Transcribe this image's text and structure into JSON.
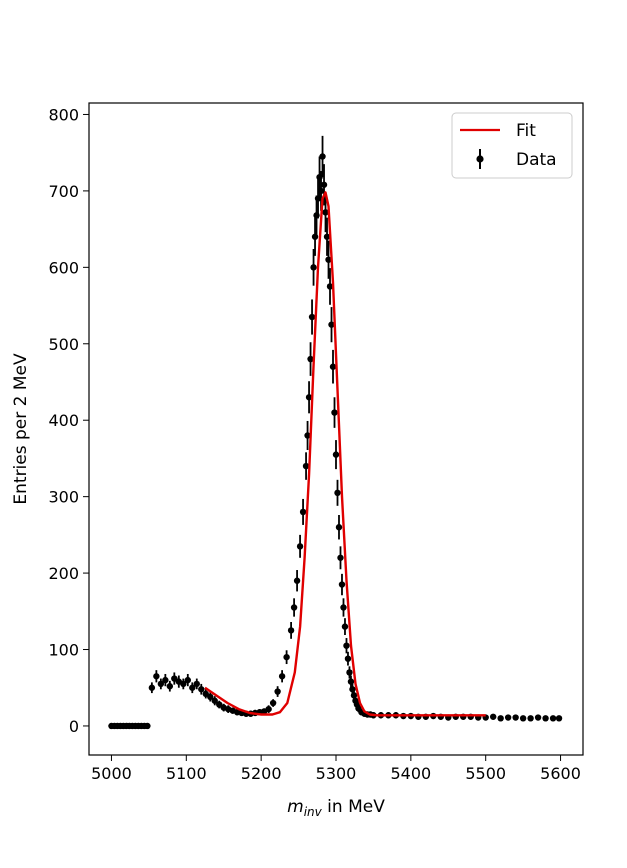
{
  "chart_data": {
    "type": "scatter",
    "xlabel_main": "m",
    "xlabel_sub": "inv",
    "xlabel_rest": " in MeV",
    "ylabel": "Entries per 2 MeV",
    "xlim": [
      4970,
      5630
    ],
    "ylim": [
      -38,
      815
    ],
    "x_ticks": [
      5000,
      5100,
      5200,
      5300,
      5400,
      5500,
      5600
    ],
    "y_ticks": [
      0,
      100,
      200,
      300,
      400,
      500,
      600,
      700,
      800
    ],
    "legend_placement": "top-right",
    "legend": [
      {
        "label": "Fit",
        "kind": "line"
      },
      {
        "label": "Data",
        "kind": "errorbar"
      }
    ],
    "series": [
      {
        "name": "Data",
        "kind": "errorbar",
        "color": "#000000",
        "x": [
          5000,
          5004,
          5008,
          5012,
          5016,
          5020,
          5024,
          5028,
          5032,
          5036,
          5040,
          5044,
          5048,
          5054,
          5060,
          5066,
          5072,
          5078,
          5084,
          5090,
          5096,
          5102,
          5108,
          5114,
          5120,
          5126,
          5132,
          5138,
          5144,
          5150,
          5156,
          5162,
          5168,
          5174,
          5180,
          5186,
          5192,
          5198,
          5204,
          5210,
          5216,
          5222,
          5228,
          5234,
          5240,
          5244,
          5248,
          5252,
          5256,
          5260,
          5262,
          5264,
          5266,
          5268,
          5270,
          5272,
          5274,
          5276,
          5278,
          5280,
          5282,
          5284,
          5286,
          5288,
          5290,
          5292,
          5294,
          5296,
          5298,
          5300,
          5302,
          5304,
          5306,
          5308,
          5310,
          5312,
          5314,
          5316,
          5318,
          5320,
          5322,
          5324,
          5326,
          5328,
          5330,
          5334,
          5338,
          5342,
          5346,
          5350,
          5360,
          5370,
          5380,
          5390,
          5400,
          5410,
          5420,
          5430,
          5440,
          5450,
          5460,
          5470,
          5480,
          5490,
          5500,
          5510,
          5520,
          5530,
          5540,
          5550,
          5560,
          5570,
          5580,
          5590,
          5598
        ],
        "y": [
          0,
          0,
          0,
          0,
          0,
          0,
          0,
          0,
          0,
          0,
          0,
          0,
          0,
          50,
          65,
          55,
          60,
          52,
          62,
          58,
          55,
          60,
          50,
          55,
          48,
          42,
          38,
          33,
          28,
          24,
          22,
          20,
          18,
          17,
          16,
          16,
          17,
          18,
          19,
          22,
          30,
          45,
          65,
          90,
          125,
          155,
          190,
          235,
          280,
          340,
          380,
          430,
          480,
          535,
          600,
          640,
          668,
          690,
          718,
          700,
          745,
          708,
          672,
          640,
          610,
          575,
          525,
          470,
          410,
          355,
          305,
          260,
          220,
          185,
          155,
          130,
          105,
          88,
          70,
          58,
          48,
          40,
          33,
          28,
          23,
          18,
          16,
          15,
          15,
          14,
          14,
          14,
          14,
          13,
          13,
          12,
          12,
          13,
          12,
          11,
          12,
          12,
          12,
          11,
          11,
          12,
          10,
          11,
          11,
          10,
          10,
          11,
          10,
          10,
          10
        ],
        "err": [
          0,
          0,
          0,
          0,
          0,
          0,
          0,
          0,
          0,
          0,
          0,
          0,
          0,
          7,
          8,
          7,
          8,
          7,
          8,
          8,
          7,
          8,
          7,
          7,
          7,
          6,
          6,
          6,
          5,
          5,
          5,
          4,
          4,
          4,
          4,
          4,
          4,
          4,
          4,
          5,
          5,
          7,
          8,
          9,
          11,
          12,
          14,
          15,
          17,
          18,
          19,
          21,
          22,
          23,
          24,
          25,
          26,
          26,
          27,
          26,
          27,
          27,
          26,
          25,
          25,
          24,
          23,
          22,
          20,
          19,
          17,
          16,
          15,
          14,
          12,
          11,
          10,
          9,
          8,
          8,
          7,
          6,
          6,
          5,
          5,
          4,
          4,
          4,
          4,
          4,
          4,
          4,
          4,
          4,
          4,
          3,
          3,
          4,
          3,
          3,
          3,
          3,
          3,
          3,
          3,
          3,
          3,
          3,
          3,
          3,
          3,
          3,
          3,
          3,
          3
        ]
      },
      {
        "name": "Fit",
        "kind": "line",
        "color": "#e00000",
        "x": [
          5125,
          5140,
          5155,
          5170,
          5185,
          5200,
          5215,
          5225,
          5235,
          5245,
          5252,
          5258,
          5264,
          5270,
          5276,
          5282,
          5286,
          5290,
          5296,
          5302,
          5308,
          5314,
          5320,
          5326,
          5332,
          5338,
          5345,
          5355,
          5370,
          5400,
          5450,
          5500
        ],
        "y": [
          50,
          40,
          30,
          22,
          17,
          15,
          15,
          18,
          30,
          70,
          130,
          220,
          330,
          470,
          600,
          690,
          698,
          680,
          580,
          440,
          300,
          190,
          105,
          55,
          30,
          19,
          15,
          14,
          14,
          14,
          14,
          14
        ]
      }
    ]
  }
}
